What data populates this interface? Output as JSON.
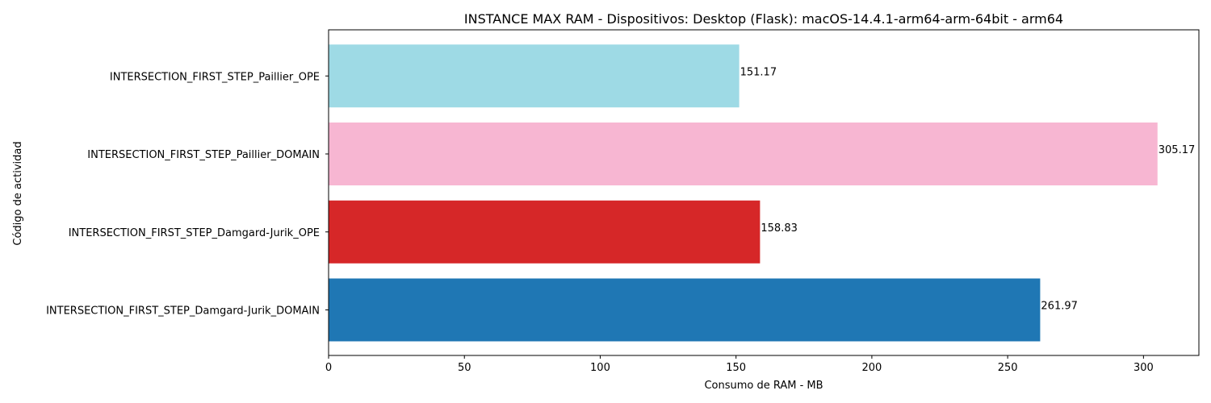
{
  "chart_data": {
    "type": "bar",
    "orientation": "horizontal",
    "title": "INSTANCE MAX RAM - Dispositivos: Desktop (Flask): macOS-14.4.1-arm64-arm-64bit - arm64",
    "xlabel": "Consumo de RAM - MB",
    "ylabel": "Código de actividad",
    "categories": [
      "INTERSECTION_FIRST_STEP_Damgard-Jurik_DOMAIN",
      "INTERSECTION_FIRST_STEP_Damgard-Jurik_OPE",
      "INTERSECTION_FIRST_STEP_Paillier_DOMAIN",
      "INTERSECTION_FIRST_STEP_Paillier_OPE"
    ],
    "values": [
      261.97,
      158.83,
      305.17,
      151.17
    ],
    "value_labels": [
      "261.97",
      "158.83",
      "305.17",
      "151.17"
    ],
    "colors": [
      "#1f77b4",
      "#d62728",
      "#f7b6d2",
      "#9edae5"
    ],
    "xlim": [
      0,
      320.4
    ],
    "xticks": [
      0,
      50,
      100,
      150,
      200,
      250,
      300
    ],
    "grid": false,
    "legend": false
  }
}
